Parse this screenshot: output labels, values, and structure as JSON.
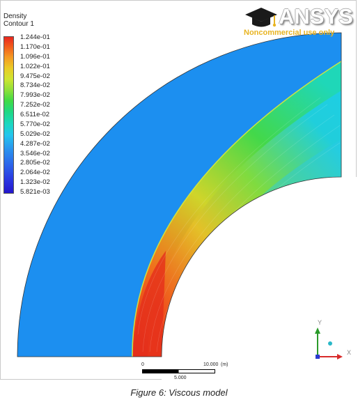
{
  "legend": {
    "variable": "Density",
    "contour": "Contour 1",
    "levels": [
      "1.244e-01",
      "1.170e-01",
      "1.096e-01",
      "1.022e-01",
      "9.475e-02",
      "8.734e-02",
      "7.993e-02",
      "7.252e-02",
      "6.511e-02",
      "5.770e-02",
      "5.029e-02",
      "4.287e-02",
      "3.546e-02",
      "2.805e-02",
      "2.064e-02",
      "1.323e-02",
      "5.821e-03"
    ]
  },
  "logo": {
    "brand": "ANSYS",
    "notice": "Noncommercial use only"
  },
  "scale": {
    "start": "0",
    "end": "10.000",
    "unit": "(m)",
    "mid": "5.000"
  },
  "axes": {
    "y": "Y",
    "x": "X"
  },
  "caption": "Figure 6: Viscous model",
  "colors": {
    "freestream": "#1c8ff0",
    "shock_hot": "#e8331d",
    "outline": "#333333"
  }
}
